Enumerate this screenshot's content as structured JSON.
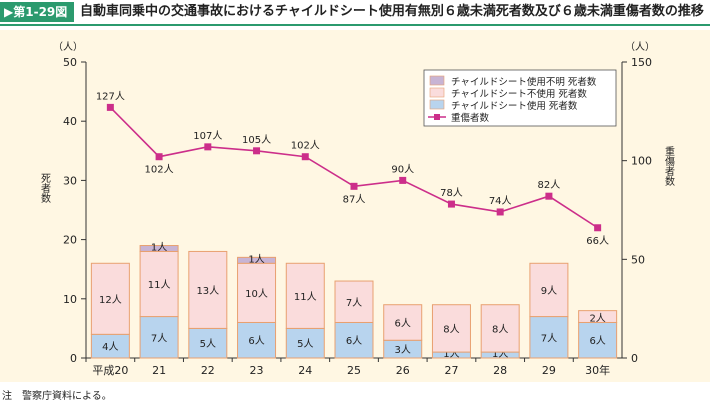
{
  "header": {
    "figure_no": "第1-29図",
    "title": "自動車同乗中の交通事故におけるチャイルドシート使用有無別６歳未満死者数及び６歳未満重傷者数の推移"
  },
  "note": "注　警察庁資料による。",
  "colors": {
    "accent": "#2b9a6e",
    "panel": "#fff7e3",
    "used": "#b8d4ee",
    "not_used": "#fadcdc",
    "unknown": "#c8b4d4",
    "bar_border": "#e8a070",
    "injured_line": "#cc2e8a"
  },
  "chart_data": {
    "type": "bar",
    "categories": [
      "平成20",
      "21",
      "22",
      "23",
      "24",
      "25",
      "26",
      "27",
      "28",
      "29",
      "30年"
    ],
    "left_axis": {
      "label": "死者数",
      "unit": "（人）",
      "range": [
        0,
        50
      ],
      "ticks": [
        "0",
        "10",
        "20",
        "30",
        "40",
        "50"
      ]
    },
    "right_axis": {
      "label": "重傷者数",
      "unit": "（人）",
      "range": [
        0,
        150
      ],
      "ticks": [
        "0",
        "50",
        "100",
        "150"
      ]
    },
    "series": [
      {
        "name": "チャイルドシート使用  死者数",
        "kind": "bar",
        "values": [
          4,
          7,
          5,
          6,
          5,
          6,
          3,
          1,
          1,
          7,
          6
        ],
        "labels": [
          "4人",
          "7人",
          "5人",
          "6人",
          "5人",
          "6人",
          "3人",
          "1人",
          "1人",
          "7人",
          "6人"
        ]
      },
      {
        "name": "チャイルドシート不使用  死者数",
        "kind": "bar",
        "values": [
          12,
          11,
          13,
          10,
          11,
          7,
          6,
          8,
          8,
          9,
          2
        ],
        "labels": [
          "12人",
          "11人",
          "13人",
          "10人",
          "11人",
          "7人",
          "6人",
          "8人",
          "8人",
          "9人",
          "2人"
        ]
      },
      {
        "name": "チャイルドシート使用不明  死者数",
        "kind": "bar",
        "values": [
          0,
          1,
          0,
          1,
          0,
          0,
          0,
          0,
          0,
          0,
          0
        ],
        "labels": [
          "",
          "1人",
          "",
          "1人",
          "",
          "",
          "",
          "",
          "",
          "",
          ""
        ]
      },
      {
        "name": "重傷者数",
        "kind": "line",
        "axis": "right",
        "values": [
          127,
          102,
          107,
          105,
          102,
          87,
          90,
          78,
          74,
          82,
          66
        ],
        "labels": [
          "127人",
          "102人",
          "107人",
          "105人",
          "102人",
          "87人",
          "90人",
          "78人",
          "74人",
          "82人",
          "66人"
        ]
      }
    ],
    "legend": [
      "チャイルドシート使用不明  死者数",
      "チャイルドシート不使用  死者数",
      "チャイルドシート使用  死者数",
      "重傷者数"
    ],
    "legend_position": "top-right",
    "grid": false
  }
}
